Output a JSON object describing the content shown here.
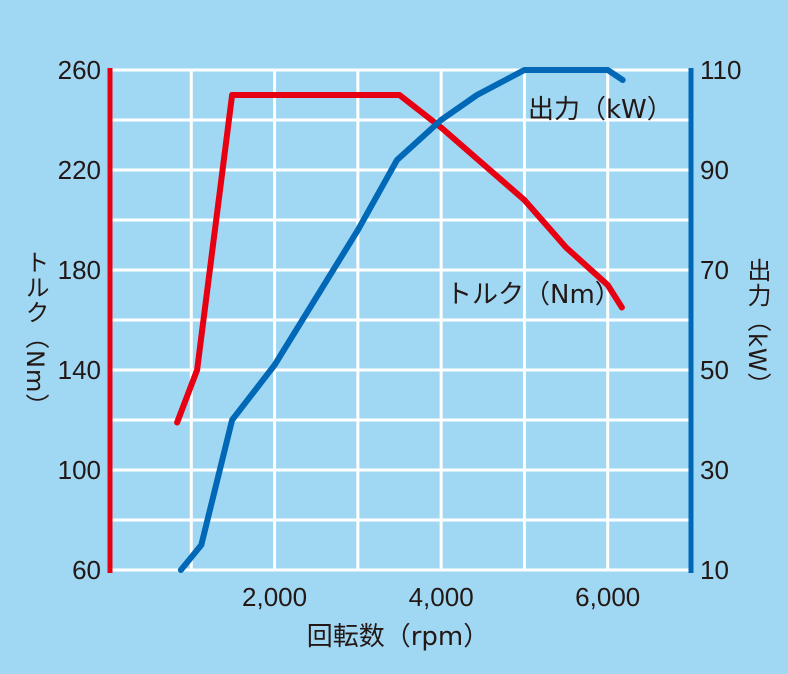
{
  "chart_data": {
    "type": "line",
    "title": "",
    "xlabel": "回転数（rpm）",
    "ylabel_left": "トルク（Nm）",
    "ylabel_right": "出力（kW）",
    "xlim": [
      0,
      7000
    ],
    "ylim_left": [
      60,
      260
    ],
    "ylim_right": [
      10,
      110
    ],
    "x_ticks": [
      2000,
      4000,
      6000
    ],
    "x_tick_labels": [
      "2,000",
      "4,000",
      "6,000"
    ],
    "y_left_ticks": [
      60,
      100,
      140,
      180,
      220,
      260
    ],
    "y_right_ticks": [
      10,
      30,
      50,
      70,
      90,
      110
    ],
    "grid": true,
    "grid_x_step": 1000,
    "grid_y_step_left": 20,
    "series": [
      {
        "name": "トルク（Nm）",
        "axis": "left",
        "color": "#e60012",
        "label_pos": [
          5100,
          170
        ],
        "points": [
          [
            830,
            119
          ],
          [
            1070,
            140
          ],
          [
            1490,
            250
          ],
          [
            3500,
            250
          ],
          [
            4000,
            237
          ],
          [
            5000,
            208
          ],
          [
            5500,
            189
          ],
          [
            6000,
            174
          ],
          [
            6170,
            165
          ]
        ]
      },
      {
        "name": "出力（kW）",
        "axis": "right",
        "color": "#0068b7",
        "label_pos": [
          5700,
          102
        ],
        "points": [
          [
            875,
            10
          ],
          [
            1120,
            15
          ],
          [
            1490,
            40
          ],
          [
            2000,
            51
          ],
          [
            3000,
            78
          ],
          [
            3470,
            92
          ],
          [
            4000,
            100
          ],
          [
            4430,
            105
          ],
          [
            5000,
            110
          ],
          [
            6000,
            110
          ],
          [
            6180,
            108
          ]
        ]
      }
    ]
  },
  "labels": {
    "x_axis": "回転数（rpm）",
    "left_axis": "トルク（Nm）",
    "right_axis": "出力（kW）",
    "torque_series": "トルク（Nm）",
    "power_series": "出力（kW）"
  },
  "colors": {
    "background": "#a0d8f4",
    "grid": "#ffffff",
    "torque": "#e60012",
    "power": "#0068b7"
  }
}
